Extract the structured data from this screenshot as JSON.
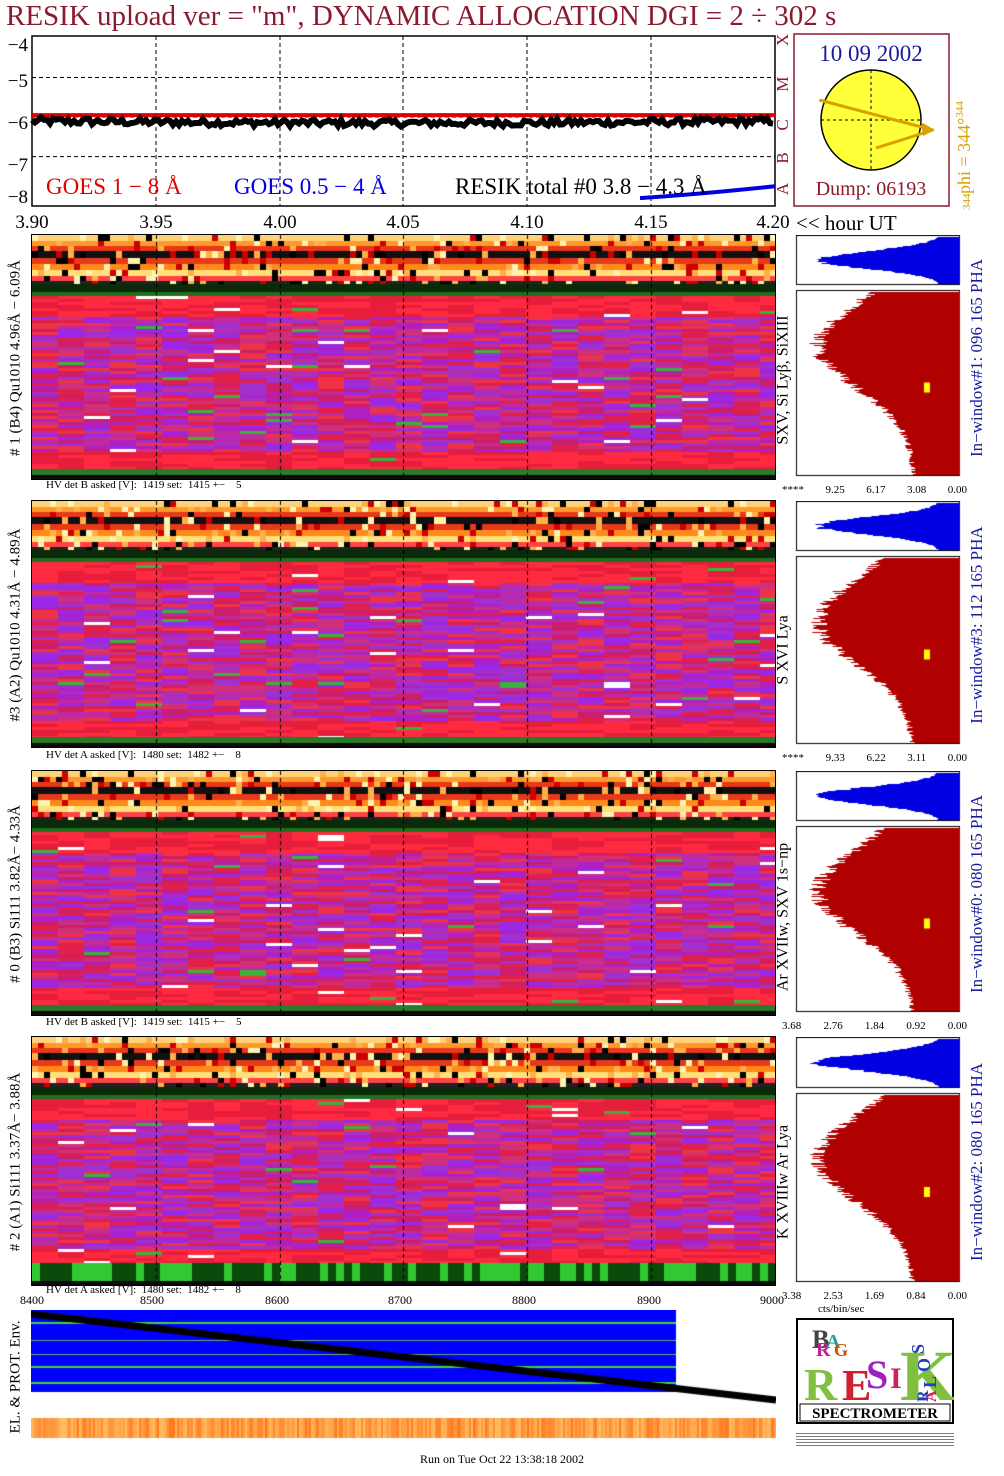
{
  "header": {
    "title": "RESIK upload ver = \"m\", DYNAMIC ALLOCATION  DGI =   2 ÷ 302 s"
  },
  "light_curve": {
    "y_ticks": [
      "−4",
      "−5",
      "−6",
      "−7",
      "−8"
    ],
    "x_ticks": [
      "3.90",
      "3.95",
      "4.00",
      "4.05",
      "4.10",
      "4.15",
      "4.20"
    ],
    "x_unit": "<< hour UT",
    "legend": [
      {
        "label": "GOES 1 − 8 Å",
        "color": "#e00000"
      },
      {
        "label": "GOES 0.5 − 4 Å",
        "color": "#0000e0"
      },
      {
        "label": "RESIK total #0  3.8 − 4.3 Å",
        "color": "#000000"
      }
    ],
    "goes_long_level": -5.95,
    "resik_total_level": -6.1
  },
  "goes_class": {
    "letters": [
      "X",
      "M",
      "C",
      "B",
      "A"
    ]
  },
  "sun_panel": {
    "date": "10 09 2002",
    "dump": "Dump: 06193",
    "phi_label": "phi = 344°",
    "phi_super": "344",
    "phi_bottom": "344",
    "phi_deg": 344
  },
  "channels": [
    {
      "id": "ch1",
      "side_label": "# 1 (B4) Qu1010 4.96Å − 6.09Å",
      "hv_text": "HV det B asked [V]:  1419 set:  1415 +−    5",
      "lines_label": "SXV, Si Lyβ, SiXIII",
      "window_label": "In−window#1:  096 165 PHA",
      "pha_ticks": [
        "****",
        "9.25",
        "6.17",
        "3.08",
        "0.00"
      ]
    },
    {
      "id": "ch3",
      "side_label": "#3 (A2) Qu1010  4.31Å − 4.89Å",
      "hv_text": "HV det A asked [V]:  1480 set:  1482 +−    8",
      "lines_label": "S XVI Lya",
      "window_label": "In−window#3:  112 165 PHA",
      "pha_ticks": [
        "****",
        "9.33",
        "6.22",
        "3.11",
        "0.00"
      ]
    },
    {
      "id": "ch0",
      "side_label": "# 0 (B3) Si111  3.82Å− 4.33Å",
      "hv_text": "HV det B asked [V]:  1419 set:  1415 +−    5",
      "lines_label": "Ar XVIIw, SXV 1s−np",
      "window_label": "In−window#0:  080 165 PHA",
      "pha_ticks": [
        "3.68",
        "2.76",
        "1.84",
        "0.92",
        "0.00"
      ]
    },
    {
      "id": "ch2",
      "side_label": "# 2 (A1) Si111  3.37Å− 3.88Å",
      "hv_text": "HV det A asked [V]:  1480 set:  1482 +−    8",
      "lines_label": "K XVIIIw  Ar Lya",
      "window_label": "In−window#2:  080 165 PHA",
      "pha_ticks": [
        "3.38",
        "2.53",
        "1.69",
        "0.84",
        "0.00"
      ]
    }
  ],
  "pha_unit": "cts/bin/sec",
  "env_panel": {
    "label": "EL. & PROT. Env.",
    "x_ticks": [
      "8400",
      "8500",
      "8600",
      "8700",
      "8800",
      "8900",
      "9000"
    ]
  },
  "logo": {
    "letters": [
      "B",
      "R",
      "A",
      "G",
      "R",
      "E",
      "S",
      "I",
      "K",
      "S",
      "O",
      "L",
      "A",
      "R"
    ],
    "caption": "SPECTROMETER"
  },
  "colors": {
    "title": "#8b1a2e",
    "label_blue": "#1a1aa0",
    "sun_fill": "#ffff3a",
    "phi_orange": "#d9a000",
    "pha_red": "#b00000",
    "pha_blue": "#0000e0",
    "env_blue": "#0000ff"
  },
  "footer": {
    "text": "Run on Tue Oct 22 13:38:18 2002"
  }
}
